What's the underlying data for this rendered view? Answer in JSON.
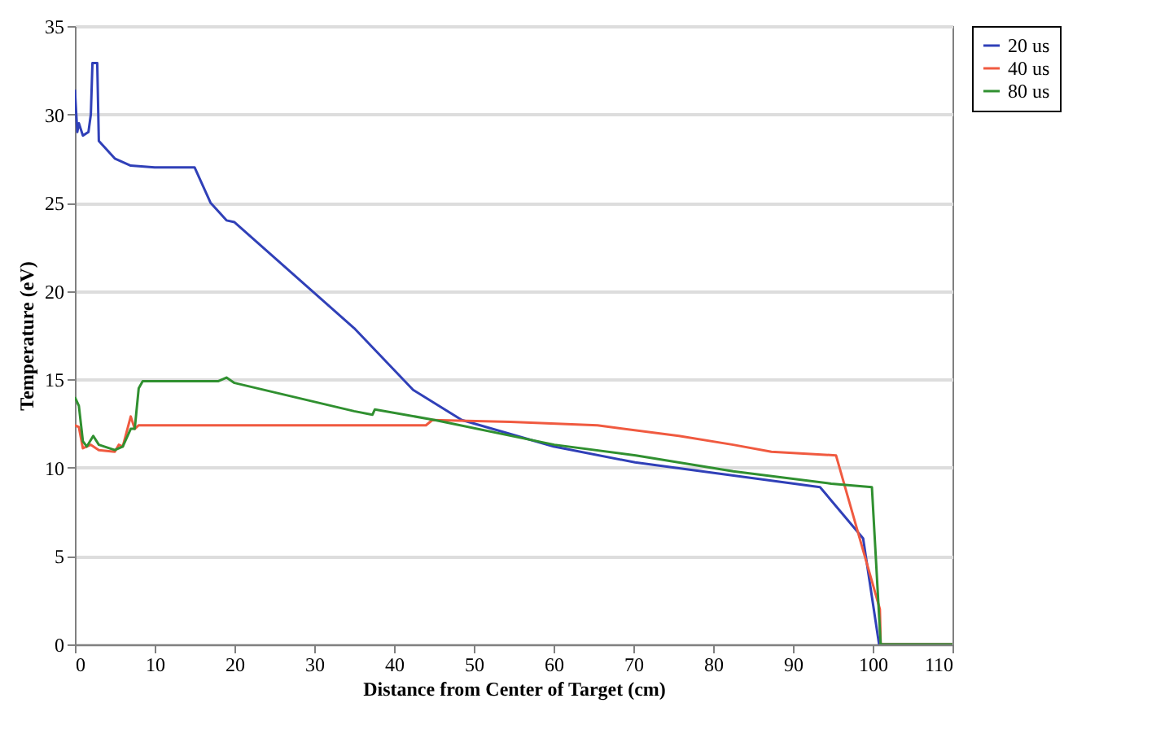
{
  "chart_data": {
    "type": "line",
    "xlabel": "Distance from Center of Target (cm)",
    "ylabel": "Temperature (eV)",
    "xlim": [
      0,
      110
    ],
    "xticks": [
      0,
      10,
      20,
      30,
      40,
      50,
      60,
      70,
      80,
      90,
      100,
      110
    ],
    "ylim": [
      0,
      35
    ],
    "yticks": [
      0,
      5,
      10,
      15,
      20,
      25,
      30,
      35
    ],
    "grid": "y",
    "legend": "right",
    "marker": "none",
    "line_style": "solid",
    "series": [
      {
        "name": "20 us",
        "color": "#3040b8",
        "x": [
          0,
          0.3,
          0.5,
          1,
          1.7,
          2,
          2.2,
          2.8,
          3,
          5,
          7,
          10,
          11,
          15,
          17,
          19,
          20,
          35,
          42.4,
          48.5,
          60,
          70.2,
          93.4,
          98.8,
          100.8,
          110
        ],
        "values": [
          31.4,
          29,
          29.5,
          28.8,
          29,
          30,
          32.9,
          32.9,
          28.5,
          27.5,
          27.1,
          27,
          27,
          27,
          25,
          24,
          23.9,
          17.9,
          14.4,
          12.7,
          11.2,
          10.3,
          8.9,
          6,
          0,
          0
        ]
      },
      {
        "name": "40 us",
        "color": "#f05a40",
        "x": [
          0,
          0.5,
          1,
          2,
          3,
          5,
          5.5,
          6,
          7,
          7.5,
          8,
          44,
          44.8,
          54.6,
          65.5,
          75.7,
          82.5,
          87.3,
          95.4,
          100.9,
          101,
          110
        ],
        "values": [
          12.4,
          12.3,
          11.1,
          11.3,
          11,
          10.9,
          11.3,
          11.2,
          12.9,
          12.2,
          12.4,
          12.4,
          12.7,
          12.6,
          12.4,
          11.8,
          11.3,
          10.9,
          10.7,
          2,
          0,
          0
        ]
      },
      {
        "name": "80 us",
        "color": "#309030",
        "x": [
          0,
          0.5,
          1,
          1.5,
          2.3,
          3,
          5,
          6,
          7,
          7.5,
          8,
          8.5,
          18,
          19,
          20,
          35,
          37.3,
          37.6,
          45.1,
          60.1,
          70.3,
          82.5,
          94.8,
          99.9,
          101,
          110
        ],
        "values": [
          14,
          13.5,
          11.5,
          11.2,
          11.8,
          11.3,
          11,
          11.2,
          12.2,
          12.2,
          14.5,
          14.9,
          14.9,
          15.1,
          14.8,
          13.2,
          13,
          13.3,
          12.7,
          11.3,
          10.7,
          9.8,
          9.1,
          8.9,
          0,
          0
        ]
      }
    ]
  }
}
